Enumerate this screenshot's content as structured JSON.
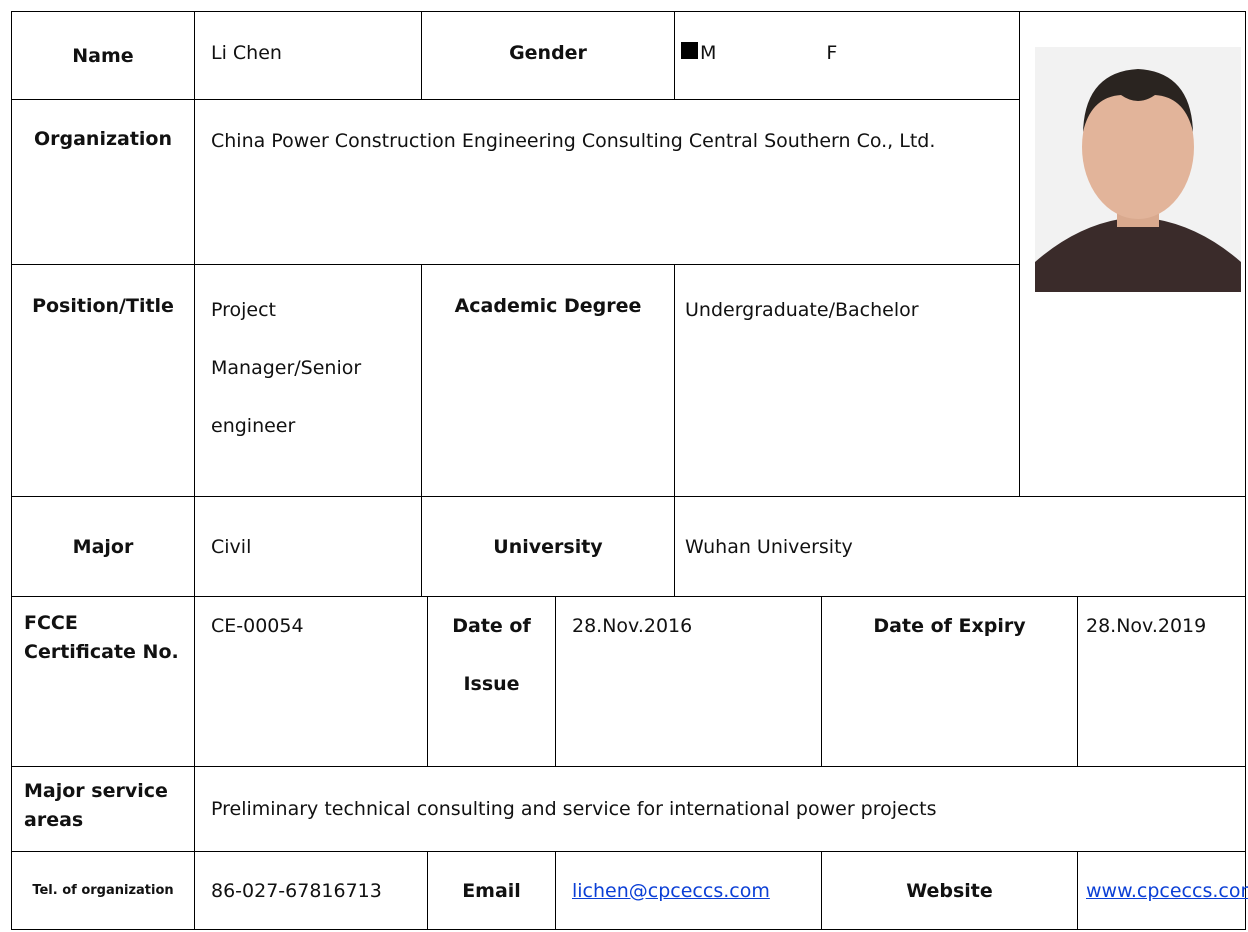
{
  "name_row": {
    "label": "Name",
    "value": "Li Chen",
    "gender_label": "Gender",
    "male": "M",
    "female": "F"
  },
  "organization": {
    "label": "Organization",
    "value": "China Power Construction Engineering Consulting Central Southern Co., Ltd."
  },
  "position_row": {
    "label": "Position/Title",
    "value": "Project Manager/Senior engineer",
    "degree_label": "Academic Degree",
    "degree": "Undergraduate/Bachelor"
  },
  "major_row": {
    "label": "Major",
    "value": "Civil",
    "university_label": "University",
    "university": "Wuhan University"
  },
  "certificate_row": {
    "label": "FCCE Certificate No.",
    "value": "CE-00054",
    "issue_label": "Date of Issue",
    "issue": "28.Nov.2016",
    "expiry_label": "Date of Expiry",
    "expiry": "28.Nov.2019"
  },
  "service_row": {
    "label": "Major service areas",
    "value": "Preliminary technical consulting and service for international power projects"
  },
  "contact_row": {
    "label": "Tel. of organization",
    "tel": "86-027-67816713",
    "email_label": "Email",
    "email": "lichen@cpceccs.com",
    "website_label": "Website",
    "website": "www.cpceccs.com"
  }
}
